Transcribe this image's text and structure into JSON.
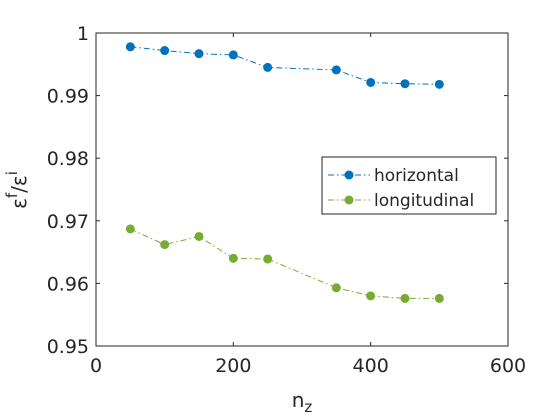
{
  "chart_data": {
    "type": "line",
    "xlabel": "n_z",
    "ylabel": "ε^f/ε^i",
    "xlim": [
      0,
      600
    ],
    "ylim": [
      0.95,
      1.0
    ],
    "xticks": [
      0,
      200,
      400,
      600
    ],
    "yticks": [
      0.95,
      0.96,
      0.97,
      0.98,
      0.99,
      1.0
    ],
    "xtick_labels": [
      "0",
      "200",
      "400",
      "600"
    ],
    "ytick_labels": [
      "0.95",
      "0.96",
      "0.97",
      "0.98",
      "0.99",
      "1"
    ],
    "grid": false,
    "legend_position": "right, middle",
    "series": [
      {
        "name": "horizontal",
        "color": "#0072bd",
        "line_style": "dash-dot",
        "marker": "circle",
        "x": [
          50,
          100,
          150,
          200,
          250,
          350,
          400,
          450,
          500
        ],
        "y": [
          0.9978,
          0.9972,
          0.9967,
          0.9965,
          0.9945,
          0.9941,
          0.9921,
          0.9919,
          0.9918
        ]
      },
      {
        "name": "longitudinal",
        "color": "#77ac30",
        "line_style": "dash-dot",
        "marker": "circle",
        "x": [
          50,
          100,
          150,
          200,
          250,
          350,
          400,
          450,
          500
        ],
        "y": [
          0.9687,
          0.9662,
          0.9675,
          0.964,
          0.9639,
          0.9593,
          0.958,
          0.9576,
          0.9576
        ]
      }
    ]
  }
}
